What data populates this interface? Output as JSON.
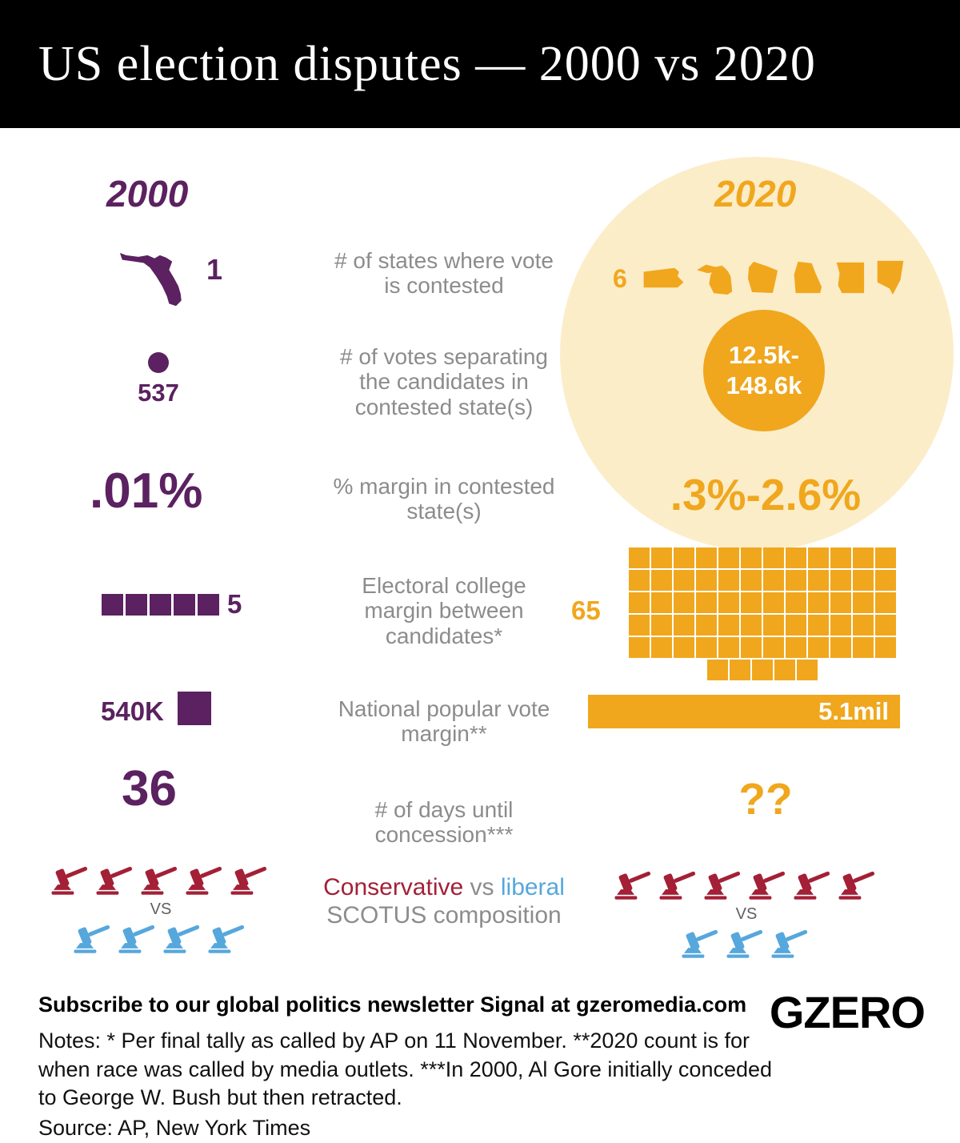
{
  "header": {
    "title": "US election disputes — 2000 vs 2020"
  },
  "columns": {
    "left_year": "2000",
    "right_year": "2020"
  },
  "colors": {
    "purple": "#5b2160",
    "gold": "#f0a71d",
    "pale_gold": "#fcedc9",
    "conservative_red": "#a32036",
    "liberal_blue": "#56a7dc",
    "label_gray": "#8c8c8c"
  },
  "metrics": {
    "states_contested": {
      "label_lines": [
        "# of states where vote",
        "is contested"
      ],
      "left_value": "1",
      "right_value": "6",
      "right_states": [
        "Pennsylvania",
        "Michigan",
        "Wisconsin",
        "Georgia",
        "Arizona",
        "Nevada"
      ]
    },
    "votes_separating": {
      "label_lines": [
        "# of votes separating",
        "the candidates in",
        "contested state(s)"
      ],
      "left_value": "537",
      "right_value_line1": "12.5k-",
      "right_value_line2": "148.6k"
    },
    "pct_margin": {
      "label_lines": [
        "% margin in contested",
        "state(s)"
      ],
      "left_value": ".01%",
      "right_value": ".3%-2.6%"
    },
    "electoral_margin": {
      "label_lines": [
        "Electoral college",
        "margin between",
        "candidates*"
      ],
      "left_value": "5",
      "left_squares": 5,
      "right_value": "65",
      "right_waffle_rows": [
        12,
        12,
        12,
        12,
        12,
        5
      ]
    },
    "popular_vote": {
      "label_lines": [
        "National popular vote",
        "margin**"
      ],
      "left_value": "540K",
      "right_value": "5.1mil"
    },
    "days_concession": {
      "label_lines": [
        "# of days until",
        "concession***"
      ],
      "left_value": "36",
      "right_value": "??"
    },
    "scotus": {
      "conservative_label": "Conservative",
      "vs_label": "vs",
      "liberal_label": "liberal",
      "line2": "SCOTUS composition",
      "divider_label": "VS",
      "year_2000": {
        "conservative": 5,
        "liberal": 4
      },
      "year_2020": {
        "conservative": 6,
        "liberal": 3
      }
    }
  },
  "footer": {
    "subscribe": "Subscribe to our global politics newsletter Signal at gzeromedia.com",
    "notes": "Notes: * Per final tally as called by AP on 11 November. **2020 count is for when race was called by media outlets. ***In 2000, Al Gore initially conceded to George W. Bush but then retracted.",
    "source": "Source: AP, New York Times",
    "logo": "GZERO"
  },
  "chart_data": {
    "type": "table",
    "title": "US election disputes — 2000 vs 2020",
    "categories": [
      "# of states where vote is contested",
      "# of votes separating the candidates in contested state(s)",
      "% margin in contested state(s)",
      "Electoral college margin between candidates*",
      "National popular vote margin**",
      "# of days until concession***",
      "Conservative vs liberal SCOTUS composition"
    ],
    "series": [
      {
        "name": "2000",
        "values": [
          "1 (Florida)",
          "537",
          ".01%",
          "5",
          "540K",
          "36",
          "5 conservative vs 4 liberal"
        ]
      },
      {
        "name": "2020",
        "values": [
          "6 (Pennsylvania, Michigan, Wisconsin, Georgia, Arizona, Nevada)",
          "12.5k-148.6k",
          ".3%-2.6%",
          "65",
          "5.1mil",
          "??",
          "6 conservative vs 3 liberal"
        ]
      }
    ]
  }
}
